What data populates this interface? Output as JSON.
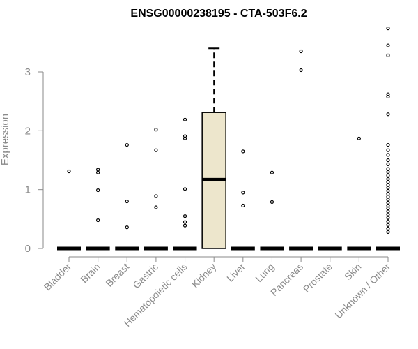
{
  "chart_data": {
    "type": "box",
    "title": "ENSG00000238195 - CTA-503F6.2",
    "xlabel": "",
    "ylabel": "Expression",
    "ylim": [
      0,
      3.8
    ],
    "yticks": [
      0,
      1,
      2,
      3
    ],
    "grid": false,
    "box_fill": "#ede6cc",
    "categories": [
      "Bladder",
      "Brain",
      "Breast",
      "Gastric",
      "Hematopoietic cells",
      "Kidney",
      "Liver",
      "Lung",
      "Pancreas",
      "Prostate",
      "Skin",
      "Unknown / Other"
    ],
    "boxes": [
      {
        "category": "Bladder",
        "min": 0,
        "q1": 0,
        "median": 0,
        "q3": 0,
        "max": 0,
        "outliers": [
          1.31
        ]
      },
      {
        "category": "Brain",
        "min": 0,
        "q1": 0,
        "median": 0,
        "q3": 0,
        "max": 0,
        "outliers": [
          1.34,
          1.29,
          0.99,
          0.48
        ]
      },
      {
        "category": "Breast",
        "min": 0,
        "q1": 0,
        "median": 0,
        "q3": 0,
        "max": 0,
        "outliers": [
          1.76,
          0.8,
          0.36
        ]
      },
      {
        "category": "Gastric",
        "min": 0,
        "q1": 0,
        "median": 0,
        "q3": 0,
        "max": 0,
        "outliers": [
          2.02,
          1.67,
          0.89,
          0.7
        ]
      },
      {
        "category": "Hematopoietic cells",
        "min": 0,
        "q1": 0,
        "median": 0,
        "q3": 0,
        "max": 0,
        "outliers": [
          2.19,
          1.91,
          1.87,
          1.01,
          0.55,
          0.45,
          0.39
        ]
      },
      {
        "category": "Kidney",
        "min": 0,
        "q1": 0,
        "median": 1.17,
        "q3": 2.31,
        "max": 3.4,
        "outliers": []
      },
      {
        "category": "Liver",
        "min": 0,
        "q1": 0,
        "median": 0,
        "q3": 0,
        "max": 0,
        "outliers": [
          1.65,
          0.95,
          0.73
        ]
      },
      {
        "category": "Lung",
        "min": 0,
        "q1": 0,
        "median": 0,
        "q3": 0,
        "max": 0,
        "outliers": [
          1.29,
          0.79
        ]
      },
      {
        "category": "Pancreas",
        "min": 0,
        "q1": 0,
        "median": 0,
        "q3": 0,
        "max": 0,
        "outliers": [
          3.35,
          3.03
        ]
      },
      {
        "category": "Prostate",
        "min": 0,
        "q1": 0,
        "median": 0,
        "q3": 0,
        "max": 0,
        "outliers": []
      },
      {
        "category": "Skin",
        "min": 0,
        "q1": 0,
        "median": 0,
        "q3": 0,
        "max": 0,
        "outliers": [
          1.87
        ]
      },
      {
        "category": "Unknown / Other",
        "min": 0,
        "q1": 0,
        "median": 0,
        "q3": 0,
        "max": 0,
        "outliers": [
          3.74,
          3.45,
          3.28,
          2.62,
          2.58,
          2.28,
          1.76,
          1.67,
          1.59,
          1.5,
          1.43,
          1.35,
          1.3,
          1.24,
          1.18,
          1.13,
          1.08,
          1.03,
          0.98,
          0.93,
          0.88,
          0.83,
          0.78,
          0.73,
          0.68,
          0.63,
          0.58,
          0.52,
          0.46,
          0.4,
          0.34,
          0.28
        ]
      }
    ]
  }
}
